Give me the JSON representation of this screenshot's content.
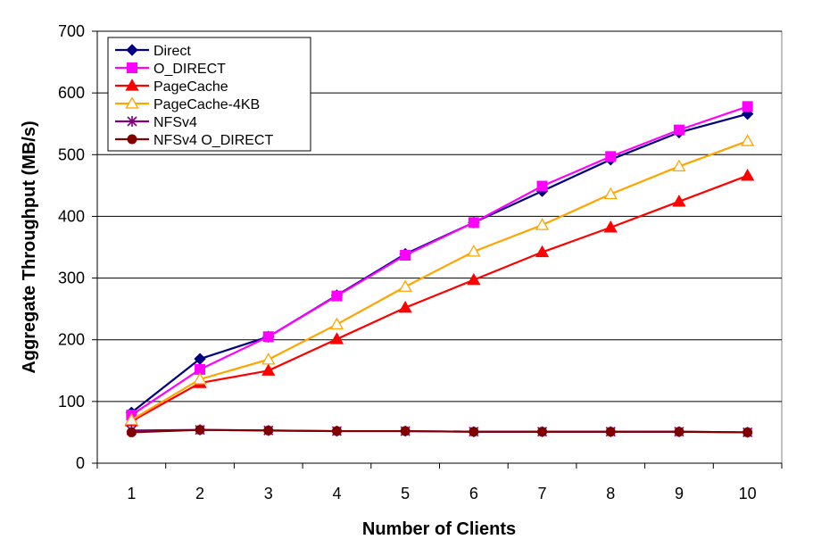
{
  "chart_data": {
    "type": "line",
    "title": "",
    "xlabel": "Number of Clients",
    "ylabel": "Aggregate Throughput (MB/s)",
    "categories": [
      "1",
      "2",
      "3",
      "4",
      "5",
      "6",
      "7",
      "8",
      "9",
      "10"
    ],
    "ylim": [
      0,
      700
    ],
    "yticks": [
      "0",
      "100",
      "200",
      "300",
      "400",
      "500",
      "600",
      "700"
    ],
    "grid": "horizontal",
    "legend_position": "top-left",
    "series": [
      {
        "name": "Direct",
        "color": "#000080",
        "marker": "diamond",
        "values": [
          82,
          169,
          205,
          272,
          339,
          390,
          441,
          492,
          536,
          566
        ]
      },
      {
        "name": "O_DIRECT",
        "color": "#ff00ff",
        "marker": "square",
        "values": [
          78,
          152,
          205,
          271,
          337,
          390,
          449,
          497,
          540,
          578
        ]
      },
      {
        "name": "PageCache",
        "color": "#ff0000",
        "marker": "triangle",
        "values": [
          68,
          130,
          150,
          201,
          252,
          297,
          342,
          382,
          424,
          466
        ]
      },
      {
        "name": "PageCache-4KB",
        "color": "#ffa500",
        "marker": "triangle-open",
        "values": [
          70,
          136,
          168,
          225,
          286,
          343,
          386,
          436,
          481,
          522
        ]
      },
      {
        "name": "NFSv4",
        "color": "#800080",
        "marker": "star",
        "values": [
          53,
          54,
          53,
          52,
          52,
          51,
          51,
          51,
          51,
          50
        ]
      },
      {
        "name": "NFSv4 O_DIRECT",
        "color": "#800000",
        "marker": "circle",
        "values": [
          50,
          54,
          53,
          52,
          52,
          51,
          51,
          51,
          51,
          50
        ]
      }
    ]
  }
}
